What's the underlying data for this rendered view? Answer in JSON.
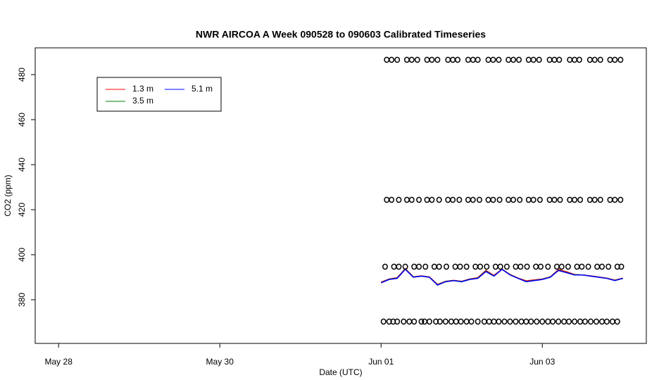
{
  "chart_data": {
    "type": "line",
    "title": "NWR AIRCOA A  Week 090528 to 090603  Calibrated Timeseries",
    "xlabel": "Date (UTC)",
    "ylabel": "CO2 (ppm)",
    "xlim": [
      -0.29,
      7.29
    ],
    "ylim": [
      360.6,
      491.9
    ],
    "xticks": [
      {
        "value": 0,
        "label": "May 28"
      },
      {
        "value": 2,
        "label": "May 30"
      },
      {
        "value": 4,
        "label": "Jun 01"
      },
      {
        "value": 6,
        "label": "Jun 03"
      }
    ],
    "yticks": [
      380,
      400,
      420,
      440,
      460,
      480
    ],
    "legend": "topleft",
    "x": [
      4.0,
      4.1,
      4.2,
      4.3,
      4.4,
      4.5,
      4.6,
      4.7,
      4.8,
      4.9,
      5.0,
      5.1,
      5.2,
      5.3,
      5.4,
      5.5,
      5.6,
      5.7,
      5.8,
      5.9,
      6.0,
      6.1,
      6.2,
      6.3,
      6.4,
      6.5,
      6.6,
      6.7,
      6.8,
      6.9,
      7.0
    ],
    "series": [
      {
        "name": "1.3 m",
        "color": "#ff0000",
        "values": [
          387.8,
          389.2,
          389.8,
          393.8,
          390.2,
          390.6,
          390.1,
          386.8,
          388.2,
          388.6,
          388.2,
          389.2,
          389.8,
          393.0,
          390.8,
          393.6,
          391.2,
          389.6,
          388.4,
          388.8,
          389.2,
          390.2,
          393.4,
          392.4,
          391.2,
          391.0,
          390.6,
          390.1,
          389.6,
          388.7,
          389.6
        ]
      },
      {
        "name": "3.5 m",
        "color": "#008000",
        "values": [
          387.6,
          389.1,
          389.6,
          393.6,
          390.1,
          390.5,
          390.0,
          386.6,
          388.1,
          388.5,
          388.1,
          389.1,
          389.6,
          392.7,
          390.6,
          393.5,
          391.1,
          389.5,
          388.1,
          388.6,
          389.1,
          390.1,
          393.1,
          392.1,
          391.1,
          391.0,
          390.5,
          390.0,
          389.5,
          388.6,
          389.5
        ]
      },
      {
        "name": "5.1 m",
        "color": "#0000ff",
        "values": [
          387.5,
          389.0,
          389.5,
          393.5,
          390.0,
          390.5,
          390.0,
          386.5,
          388.0,
          388.5,
          388.0,
          389.0,
          389.5,
          392.5,
          390.5,
          393.5,
          391.0,
          389.5,
          388.0,
          388.5,
          389.0,
          390.0,
          393.0,
          392.0,
          391.0,
          391.0,
          390.5,
          390.0,
          389.5,
          388.5,
          389.5
        ]
      }
    ],
    "calibration": [
      {
        "value": 486.6,
        "x": [
          4.07,
          4.13,
          4.2,
          4.32,
          4.38,
          4.45,
          4.57,
          4.63,
          4.7,
          4.83,
          4.89,
          4.95,
          5.08,
          5.14,
          5.2,
          5.33,
          5.39,
          5.46,
          5.58,
          5.64,
          5.71,
          5.83,
          5.89,
          5.96,
          6.09,
          6.15,
          6.21,
          6.34,
          6.4,
          6.46,
          6.59,
          6.65,
          6.72,
          6.84,
          6.9,
          6.97
        ]
      },
      {
        "value": 424.4,
        "x": [
          4.07,
          4.13,
          4.22,
          4.32,
          4.38,
          4.47,
          4.57,
          4.63,
          4.72,
          4.83,
          4.89,
          4.97,
          5.08,
          5.14,
          5.22,
          5.33,
          5.39,
          5.47,
          5.58,
          5.64,
          5.72,
          5.83,
          5.89,
          5.97,
          6.09,
          6.15,
          6.22,
          6.34,
          6.4,
          6.47,
          6.59,
          6.65,
          6.72,
          6.84,
          6.9,
          6.97
        ]
      },
      {
        "value": 394.7,
        "x": [
          4.05,
          4.16,
          4.22,
          4.3,
          4.41,
          4.47,
          4.55,
          4.66,
          4.72,
          4.81,
          4.92,
          4.98,
          5.06,
          5.17,
          5.23,
          5.31,
          5.42,
          5.48,
          5.56,
          5.67,
          5.73,
          5.81,
          5.92,
          5.98,
          6.07,
          6.18,
          6.24,
          6.32,
          6.43,
          6.49,
          6.57,
          6.68,
          6.74,
          6.82,
          6.93,
          6.98
        ]
      },
      {
        "value": 370.3,
        "x": [
          4.03,
          4.1,
          4.15,
          4.2,
          4.28,
          4.35,
          4.41,
          4.5,
          4.54,
          4.6,
          4.68,
          4.73,
          4.8,
          4.87,
          4.93,
          4.99,
          5.06,
          5.12,
          5.2,
          5.28,
          5.34,
          5.4,
          5.46,
          5.53,
          5.6,
          5.67,
          5.74,
          5.8,
          5.86,
          5.93,
          6.0,
          6.07,
          6.13,
          6.2,
          6.27,
          6.33,
          6.4,
          6.47,
          6.53,
          6.6,
          6.67,
          6.74,
          6.8,
          6.87,
          6.93
        ]
      }
    ]
  }
}
